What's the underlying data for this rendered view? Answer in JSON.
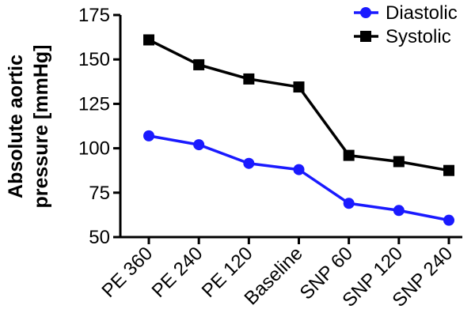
{
  "chart_data": {
    "type": "line",
    "title": "",
    "xlabel": "",
    "ylabel": [
      "Absolute aortic",
      "pressure [mmHg]"
    ],
    "categories": [
      "PE 360",
      "PE 240",
      "PE 120",
      "Baseline",
      "SNP 60",
      "SNP 120",
      "SNP 240"
    ],
    "ylim": [
      50,
      175
    ],
    "yticks": [
      50,
      75,
      100,
      125,
      150,
      175
    ],
    "grid": false,
    "legend_position": "top-right",
    "series": [
      {
        "name": "Diastolic",
        "marker": "circle",
        "color": "#1a1aff",
        "values": [
          107,
          102,
          91.5,
          88,
          69,
          65,
          59.5
        ]
      },
      {
        "name": "Systolic",
        "marker": "square",
        "color": "#000000",
        "values": [
          161,
          147,
          139,
          134.5,
          96,
          92.5,
          87.5
        ]
      }
    ]
  }
}
